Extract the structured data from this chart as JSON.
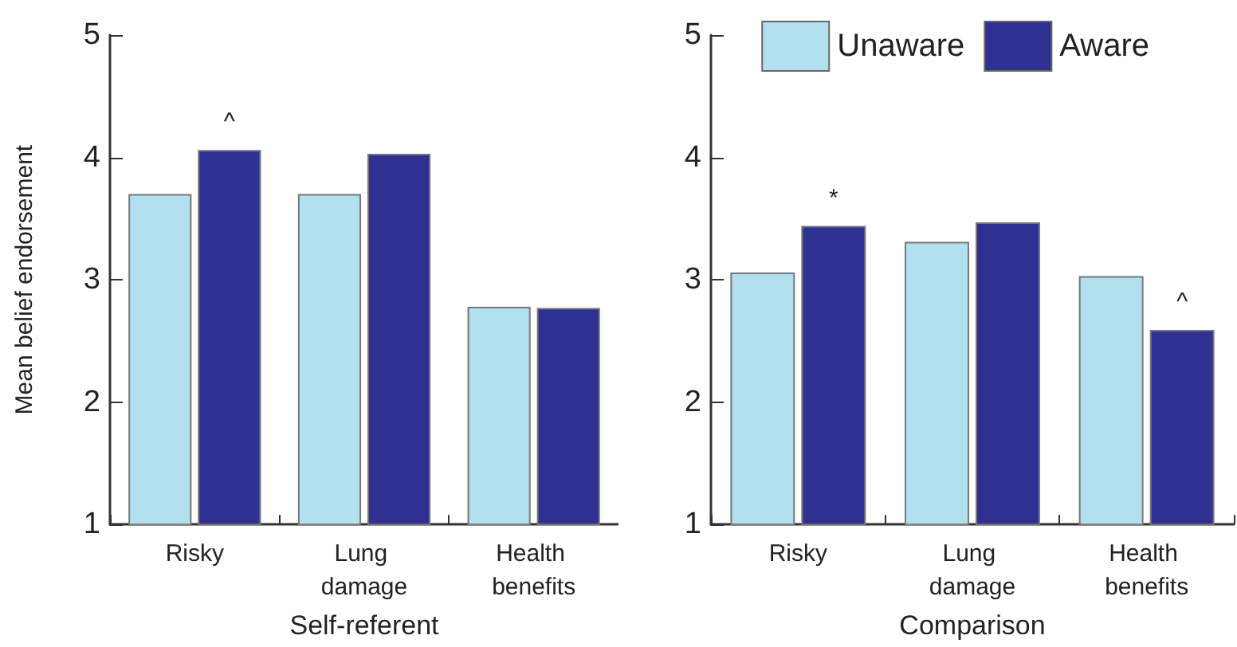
{
  "chart_data": [
    {
      "type": "bar",
      "xlabel": "Self-referent",
      "ylabel": "Mean belief endorsement",
      "categories": [
        "Risky",
        "Lung damage",
        "Health benefits"
      ],
      "series": [
        {
          "color": "#b3e0ef",
          "values": [
            3.7,
            3.7,
            2.78
          ]
        },
        {
          "color": "#2e3192",
          "values": [
            4.06,
            4.03,
            2.77
          ]
        }
      ],
      "ylim": [
        1,
        5
      ],
      "yticks": [
        1,
        2,
        3,
        4,
        5
      ],
      "grid": false,
      "annotations": [
        {
          "text": "^",
          "x": "Risky",
          "y": 4.06
        }
      ]
    },
    {
      "type": "bar",
      "xlabel": "Comparison",
      "categories": [
        "Risky",
        "Lung damage",
        "Health benefits"
      ],
      "series": [
        {
          "name": "Unaware",
          "color": "#b3e0ef",
          "values": [
            3.06,
            3.31,
            3.03
          ]
        },
        {
          "name": "Aware",
          "color": "#2e3192",
          "values": [
            3.44,
            3.47,
            2.59
          ]
        }
      ],
      "ylim": [
        1,
        5
      ],
      "yticks": [
        1,
        2,
        3,
        4,
        5
      ],
      "grid": false,
      "legend": "top right",
      "annotations": [
        {
          "text": "*",
          "x": "Risky",
          "y": 3.44
        },
        {
          "text": "^",
          "x": "Health benefits",
          "y": 2.59
        }
      ]
    }
  ]
}
